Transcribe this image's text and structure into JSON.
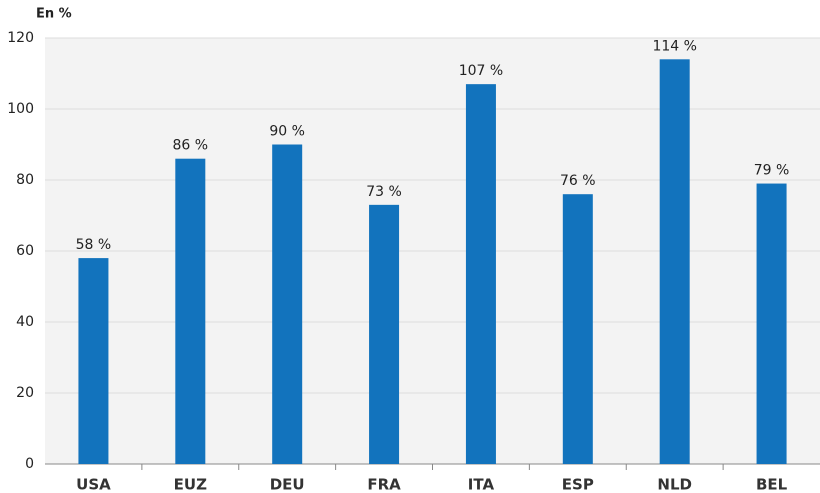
{
  "chart_data": {
    "type": "bar",
    "y_label": "En %",
    "categories": [
      "USA",
      "EUZ",
      "DEU",
      "FRA",
      "ITA",
      "ESP",
      "NLD",
      "BEL"
    ],
    "values": [
      58,
      86,
      90,
      73,
      107,
      76,
      114,
      79
    ],
    "value_labels": [
      "58 %",
      "86 %",
      "90 %",
      "73 %",
      "107 %",
      "76 %",
      "114 %",
      "79 %"
    ],
    "color": "#1273bd",
    "ylim": [
      0,
      120
    ],
    "yticks": [
      0,
      20,
      40,
      60,
      80,
      100,
      120
    ],
    "grid": true
  }
}
